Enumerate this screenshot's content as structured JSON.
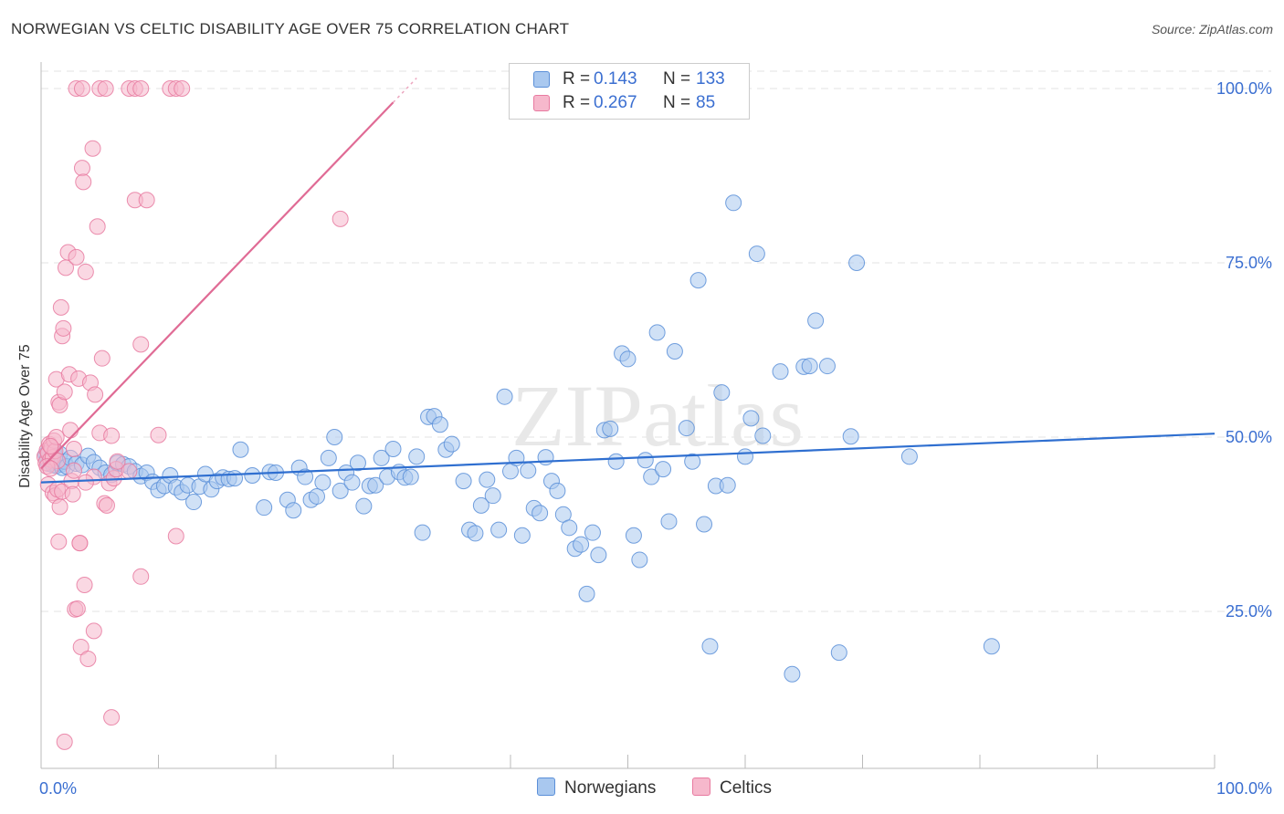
{
  "title": "NORWEGIAN VS CELTIC DISABILITY AGE OVER 75 CORRELATION CHART",
  "source": "Source: ZipAtlas.com",
  "watermark": "ZIPatlas",
  "colors": {
    "blue_fill": "#a9c8ef",
    "blue_stroke": "#5b8fd8",
    "blue_line": "#2f6fd0",
    "pink_fill": "#f6b8cc",
    "pink_stroke": "#e87aa0",
    "pink_line": "#e06b95",
    "axis_text": "#3b6fd1",
    "grid": "#e3e3e3"
  },
  "legend": {
    "rows": [
      {
        "r_label": "R =",
        "r_value": "0.143",
        "n_label": "N =",
        "n_value": "133",
        "color": "#a9c8ef"
      },
      {
        "r_label": "R =",
        "r_value": "0.267",
        "n_label": "N =",
        "n_value": "85",
        "color": "#f6b8cc"
      }
    ]
  },
  "bottom_legend": [
    {
      "label": "Norwegians",
      "color": "#a9c8ef"
    },
    {
      "label": "Celtics",
      "color": "#f6b8cc"
    }
  ],
  "chart_data": {
    "type": "scatter",
    "title": "NORWEGIAN VS CELTIC DISABILITY AGE OVER 75 CORRELATION CHART",
    "xlabel": "",
    "ylabel": "Disability Age Over 75",
    "xlim": [
      0,
      100
    ],
    "ylim": [
      0,
      105
    ],
    "x_tick_labels": [
      {
        "value": 0,
        "label": "0.0%"
      },
      {
        "value": 100,
        "label": "100.0%"
      }
    ],
    "y_tick_labels": [
      {
        "value": 25,
        "label": "25.0%"
      },
      {
        "value": 50,
        "label": "50.0%"
      },
      {
        "value": 75,
        "label": "75.0%"
      },
      {
        "value": 100,
        "label": "100.0%"
      }
    ],
    "series": [
      {
        "name": "Norwegians",
        "r": 0.143,
        "n": 133,
        "trend": {
          "x0": 0,
          "y0": 43.5,
          "x1": 100,
          "y1": 50.5
        },
        "points": [
          [
            0.4,
            47.5
          ],
          [
            0.5,
            46.8
          ],
          [
            0.6,
            46.2
          ],
          [
            0.7,
            47.8
          ],
          [
            0.8,
            46.5
          ],
          [
            0.9,
            47.0
          ],
          [
            1.0,
            46.0
          ],
          [
            1.1,
            48.0
          ],
          [
            1.2,
            47.2
          ],
          [
            1.3,
            45.9
          ],
          [
            1.5,
            46.3
          ],
          [
            1.6,
            47.6
          ],
          [
            1.7,
            46.1
          ],
          [
            1.8,
            45.6
          ],
          [
            2.0,
            46.5
          ],
          [
            2.2,
            45.8
          ],
          [
            2.5,
            47.0
          ],
          [
            3.0,
            46.2
          ],
          [
            3.5,
            46.0
          ],
          [
            4.0,
            47.3
          ],
          [
            4.5,
            46.4
          ],
          [
            5.0,
            45.6
          ],
          [
            5.5,
            44.9
          ],
          [
            6.0,
            44.6
          ],
          [
            6.5,
            46.3
          ],
          [
            7.0,
            46.1
          ],
          [
            7.5,
            45.8
          ],
          [
            8.0,
            45.1
          ],
          [
            8.5,
            44.4
          ],
          [
            9.0,
            44.9
          ],
          [
            9.5,
            43.6
          ],
          [
            10.0,
            42.4
          ],
          [
            10.5,
            43.0
          ],
          [
            11.0,
            44.5
          ],
          [
            11.5,
            42.8
          ],
          [
            12.0,
            42.1
          ],
          [
            12.5,
            43.1
          ],
          [
            13.0,
            40.7
          ],
          [
            13.5,
            42.9
          ],
          [
            14.0,
            44.7
          ],
          [
            14.5,
            42.5
          ],
          [
            15.0,
            43.7
          ],
          [
            15.5,
            44.2
          ],
          [
            16.0,
            44.0
          ],
          [
            16.5,
            44.1
          ],
          [
            17.0,
            48.2
          ],
          [
            18.0,
            44.5
          ],
          [
            19.0,
            39.9
          ],
          [
            19.5,
            45.0
          ],
          [
            20.0,
            44.9
          ],
          [
            21.0,
            41.0
          ],
          [
            21.5,
            39.5
          ],
          [
            22.0,
            45.6
          ],
          [
            22.5,
            44.3
          ],
          [
            23.0,
            41.0
          ],
          [
            23.5,
            41.5
          ],
          [
            24.0,
            43.5
          ],
          [
            24.5,
            47.0
          ],
          [
            25.0,
            50.0
          ],
          [
            25.5,
            42.3
          ],
          [
            26.0,
            44.9
          ],
          [
            26.5,
            43.5
          ],
          [
            27.0,
            46.3
          ],
          [
            27.5,
            40.1
          ],
          [
            28.0,
            43.0
          ],
          [
            28.5,
            43.1
          ],
          [
            29.0,
            47.0
          ],
          [
            29.5,
            44.3
          ],
          [
            30.0,
            48.3
          ],
          [
            30.5,
            45.0
          ],
          [
            31.0,
            44.2
          ],
          [
            31.5,
            44.3
          ],
          [
            32.0,
            47.2
          ],
          [
            32.5,
            36.3
          ],
          [
            33.0,
            52.9
          ],
          [
            33.5,
            53.0
          ],
          [
            34.0,
            51.8
          ],
          [
            34.5,
            48.2
          ],
          [
            35.0,
            49.0
          ],
          [
            36.0,
            43.7
          ],
          [
            36.5,
            36.7
          ],
          [
            37.0,
            36.2
          ],
          [
            37.5,
            40.2
          ],
          [
            38.0,
            43.9
          ],
          [
            38.5,
            41.6
          ],
          [
            39.0,
            36.7
          ],
          [
            39.5,
            55.8
          ],
          [
            40.0,
            45.1
          ],
          [
            40.5,
            47.0
          ],
          [
            41.0,
            35.9
          ],
          [
            41.5,
            45.2
          ],
          [
            42.0,
            39.8
          ],
          [
            42.5,
            39.1
          ],
          [
            43.0,
            47.1
          ],
          [
            43.5,
            43.7
          ],
          [
            44.0,
            42.3
          ],
          [
            44.5,
            38.9
          ],
          [
            45.0,
            37.0
          ],
          [
            45.5,
            34.0
          ],
          [
            46.0,
            34.6
          ],
          [
            46.5,
            27.5
          ],
          [
            47.0,
            36.3
          ],
          [
            47.5,
            33.1
          ],
          [
            48.0,
            51.0
          ],
          [
            48.5,
            51.2
          ],
          [
            49.0,
            46.5
          ],
          [
            49.5,
            62.0
          ],
          [
            50.0,
            61.2
          ],
          [
            50.5,
            35.9
          ],
          [
            51.0,
            32.4
          ],
          [
            51.5,
            46.7
          ],
          [
            52.0,
            44.3
          ],
          [
            52.5,
            65.0
          ],
          [
            53.0,
            45.4
          ],
          [
            53.5,
            37.9
          ],
          [
            54.0,
            62.3
          ],
          [
            55.0,
            51.3
          ],
          [
            55.5,
            46.5
          ],
          [
            56.0,
            72.5
          ],
          [
            56.5,
            37.5
          ],
          [
            57.0,
            20.0
          ],
          [
            57.5,
            43.0
          ],
          [
            58.0,
            56.4
          ],
          [
            58.5,
            43.1
          ],
          [
            59.0,
            83.6
          ],
          [
            60.0,
            47.2
          ],
          [
            60.5,
            52.7
          ],
          [
            61.0,
            76.3
          ],
          [
            61.5,
            50.2
          ],
          [
            64.0,
            16.0
          ],
          [
            63.0,
            59.4
          ],
          [
            65.0,
            60.1
          ],
          [
            65.5,
            60.2
          ],
          [
            66.0,
            66.7
          ],
          [
            67.0,
            60.2
          ],
          [
            68.0,
            19.1
          ],
          [
            69.0,
            50.1
          ],
          [
            69.5,
            75.0
          ],
          [
            74.0,
            47.2
          ],
          [
            81.0,
            20.0
          ]
        ]
      },
      {
        "name": "Celtics",
        "r": 0.267,
        "n": 85,
        "trend": {
          "x0": 0,
          "y0": 45.5,
          "x1": 30.0,
          "y1": 98.0,
          "dashed_to": {
            "x": 32.0,
            "y": 101.5
          }
        },
        "points": [
          [
            0.3,
            47.2
          ],
          [
            0.4,
            46.3
          ],
          [
            0.5,
            48.1
          ],
          [
            0.6,
            47.7
          ],
          [
            0.7,
            49.0
          ],
          [
            0.8,
            46.8
          ],
          [
            0.9,
            48.5
          ],
          [
            1.0,
            47.1
          ],
          [
            1.1,
            49.5
          ],
          [
            1.2,
            48.0
          ],
          [
            1.3,
            50.0
          ],
          [
            1.4,
            46.6
          ],
          [
            0.5,
            45.8
          ],
          [
            0.6,
            43.2
          ],
          [
            0.8,
            45.5
          ],
          [
            1.0,
            42.0
          ],
          [
            1.2,
            41.6
          ],
          [
            1.4,
            42.5
          ],
          [
            1.6,
            40.0
          ],
          [
            1.8,
            42.2
          ],
          [
            1.5,
            55.0
          ],
          [
            1.6,
            54.6
          ],
          [
            1.3,
            58.3
          ],
          [
            1.7,
            68.6
          ],
          [
            1.8,
            64.5
          ],
          [
            1.9,
            65.6
          ],
          [
            2.0,
            56.5
          ],
          [
            2.1,
            74.3
          ],
          [
            2.3,
            76.5
          ],
          [
            2.4,
            59.0
          ],
          [
            2.5,
            51.0
          ],
          [
            2.6,
            43.7
          ],
          [
            2.7,
            41.8
          ],
          [
            2.8,
            45.2
          ],
          [
            2.9,
            25.3
          ],
          [
            3.0,
            75.8
          ],
          [
            3.1,
            25.4
          ],
          [
            3.2,
            58.4
          ],
          [
            3.3,
            34.8
          ],
          [
            3.4,
            19.9
          ],
          [
            3.5,
            88.6
          ],
          [
            3.6,
            86.6
          ],
          [
            3.7,
            28.8
          ],
          [
            3.8,
            73.7
          ],
          [
            4.0,
            18.2
          ],
          [
            4.2,
            57.8
          ],
          [
            4.4,
            91.4
          ],
          [
            4.6,
            56.1
          ],
          [
            4.8,
            80.2
          ],
          [
            5.0,
            50.6
          ],
          [
            5.2,
            61.3
          ],
          [
            5.4,
            40.5
          ],
          [
            5.6,
            40.2
          ],
          [
            5.8,
            43.4
          ],
          [
            6.0,
            50.2
          ],
          [
            6.2,
            44.1
          ],
          [
            6.4,
            45.4
          ],
          [
            2.0,
            6.3
          ],
          [
            1.5,
            35.0
          ],
          [
            4.5,
            22.2
          ],
          [
            3.0,
            100.0
          ],
          [
            3.5,
            100.0
          ],
          [
            5.0,
            100.0
          ],
          [
            5.5,
            100.0
          ],
          [
            7.5,
            100.0
          ],
          [
            8.0,
            100.0
          ],
          [
            8.5,
            100.0
          ],
          [
            11.0,
            100.0
          ],
          [
            11.5,
            100.0
          ],
          [
            12.0,
            100.0
          ],
          [
            8.0,
            84.0
          ],
          [
            9.0,
            84.0
          ],
          [
            8.5,
            63.3
          ],
          [
            10.0,
            50.3
          ],
          [
            11.5,
            35.8
          ],
          [
            8.5,
            30.0
          ],
          [
            6.5,
            46.5
          ],
          [
            7.5,
            45.1
          ],
          [
            6.0,
            9.8
          ],
          [
            25.5,
            81.3
          ],
          [
            4.5,
            44.3
          ],
          [
            3.8,
            43.5
          ],
          [
            3.3,
            34.8
          ],
          [
            2.8,
            48.3
          ],
          [
            0.8,
            48.7
          ]
        ]
      }
    ]
  }
}
